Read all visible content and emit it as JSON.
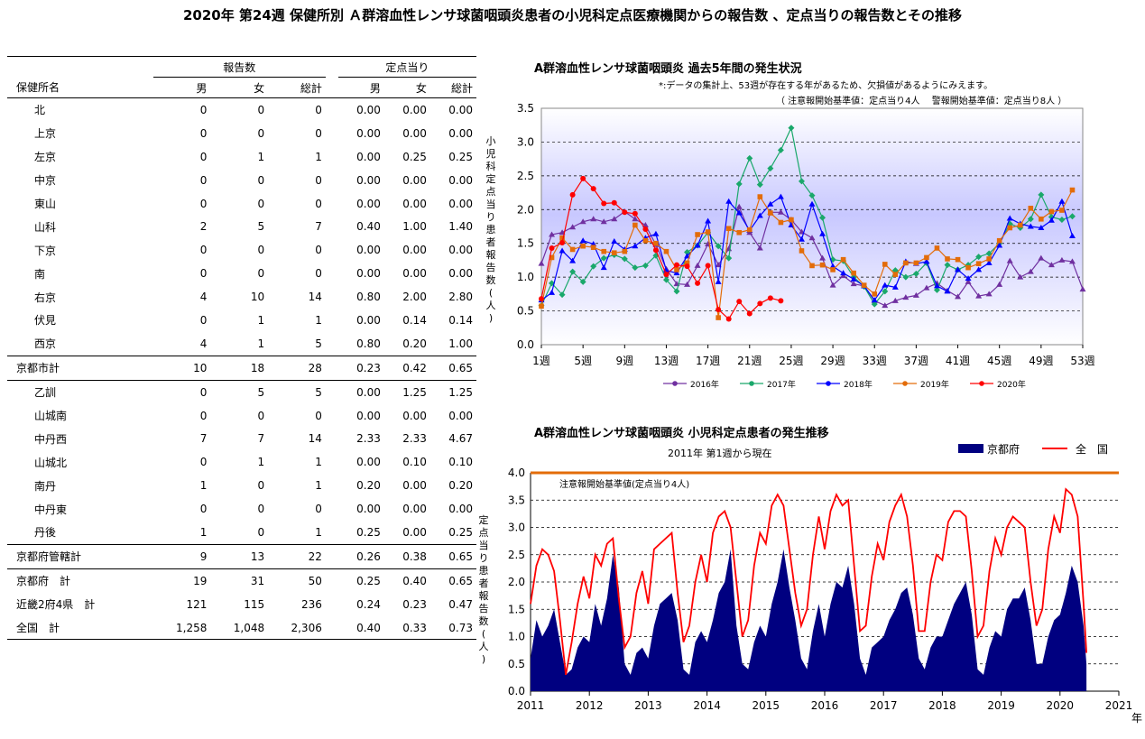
{
  "title": "2020年 第24週 保健所別 Ａ群溶血性レンサ球菌咽頭炎患者の小児科定点医療機関からの報告数 、定点当りの報告数とその推移",
  "table": {
    "group_headers": [
      "報告数",
      "定点当り"
    ],
    "name_header": "保健所名",
    "sub_headers": [
      "男",
      "女",
      "総計",
      "男",
      "女",
      "総計"
    ],
    "rows": [
      {
        "name": "北",
        "indent": 1,
        "values": [
          "0",
          "0",
          "0",
          "0.00",
          "0.00",
          "0.00"
        ]
      },
      {
        "name": "上京",
        "indent": 1,
        "values": [
          "0",
          "0",
          "0",
          "0.00",
          "0.00",
          "0.00"
        ]
      },
      {
        "name": "左京",
        "indent": 1,
        "values": [
          "0",
          "1",
          "1",
          "0.00",
          "0.25",
          "0.25"
        ]
      },
      {
        "name": "中京",
        "indent": 1,
        "values": [
          "0",
          "0",
          "0",
          "0.00",
          "0.00",
          "0.00"
        ]
      },
      {
        "name": "東山",
        "indent": 1,
        "values": [
          "0",
          "0",
          "0",
          "0.00",
          "0.00",
          "0.00"
        ]
      },
      {
        "name": "山科",
        "indent": 1,
        "values": [
          "2",
          "5",
          "7",
          "0.40",
          "1.00",
          "1.40"
        ]
      },
      {
        "name": "下京",
        "indent": 1,
        "values": [
          "0",
          "0",
          "0",
          "0.00",
          "0.00",
          "0.00"
        ]
      },
      {
        "name": "南",
        "indent": 1,
        "values": [
          "0",
          "0",
          "0",
          "0.00",
          "0.00",
          "0.00"
        ]
      },
      {
        "name": "右京",
        "indent": 1,
        "values": [
          "4",
          "10",
          "14",
          "0.80",
          "2.00",
          "2.80"
        ]
      },
      {
        "name": "伏見",
        "indent": 1,
        "values": [
          "0",
          "1",
          "1",
          "0.00",
          "0.14",
          "0.14"
        ]
      },
      {
        "name": "西京",
        "indent": 1,
        "values": [
          "4",
          "1",
          "5",
          "0.80",
          "0.20",
          "1.00"
        ]
      },
      {
        "name": "京都市計",
        "indent": 0,
        "values": [
          "10",
          "18",
          "28",
          "0.23",
          "0.42",
          "0.65"
        ]
      },
      {
        "name": "乙訓",
        "indent": 1,
        "values": [
          "0",
          "5",
          "5",
          "0.00",
          "1.25",
          "1.25"
        ]
      },
      {
        "name": "山城南",
        "indent": 1,
        "values": [
          "0",
          "0",
          "0",
          "0.00",
          "0.00",
          "0.00"
        ]
      },
      {
        "name": "中丹西",
        "indent": 1,
        "values": [
          "7",
          "7",
          "14",
          "2.33",
          "2.33",
          "4.67"
        ]
      },
      {
        "name": "山城北",
        "indent": 1,
        "values": [
          "0",
          "1",
          "1",
          "0.00",
          "0.10",
          "0.10"
        ]
      },
      {
        "name": "南丹",
        "indent": 1,
        "values": [
          "1",
          "0",
          "1",
          "0.20",
          "0.00",
          "0.20"
        ]
      },
      {
        "name": "中丹東",
        "indent": 1,
        "values": [
          "0",
          "0",
          "0",
          "0.00",
          "0.00",
          "0.00"
        ]
      },
      {
        "name": "丹後",
        "indent": 1,
        "values": [
          "1",
          "0",
          "1",
          "0.25",
          "0.00",
          "0.25"
        ]
      },
      {
        "name": "京都府管轄計",
        "indent": 0,
        "values": [
          "9",
          "13",
          "22",
          "0.26",
          "0.38",
          "0.65"
        ]
      },
      {
        "name": "京都府　計",
        "indent": 0,
        "values": [
          "19",
          "31",
          "50",
          "0.25",
          "0.40",
          "0.65"
        ]
      },
      {
        "name": "近畿2府4県　計",
        "indent": 0,
        "values": [
          "121",
          "115",
          "236",
          "0.24",
          "0.23",
          "0.47"
        ]
      },
      {
        "name": "全国　計",
        "indent": 0,
        "values": [
          "1,258",
          "1,048",
          "2,306",
          "0.40",
          "0.33",
          "0.73"
        ]
      }
    ]
  },
  "chart_data": [
    {
      "type": "line",
      "title": "A群溶血性レンサ球菌咽頭炎 過去5年間の発生状況",
      "note1": "*:データの集計上、53週が存在する年があるため、欠損値があるようにみえます。",
      "note2": "（ 注意報開始基準値：定点当り4人　 警報開始基準値：定点当り8人 ）",
      "ylabel": "小児科定点当り患者報告数(人)",
      "ylim": [
        0,
        3.5
      ],
      "yticks": [
        "0.0",
        "0.5",
        "1.0",
        "1.5",
        "2.0",
        "2.5",
        "3.0",
        "3.5"
      ],
      "xlim": [
        1,
        53
      ],
      "xticks": [
        "1週",
        "5週",
        "9週",
        "13週",
        "17週",
        "21週",
        "25週",
        "29週",
        "33週",
        "37週",
        "41週",
        "45週",
        "49週",
        "53週"
      ],
      "colors": {
        "2016年": "#7030a0",
        "2017年": "#1aa86b",
        "2018年": "#0000ff",
        "2019年": "#e36c09",
        "2020年": "#ff0000"
      },
      "series": [
        {
          "name": "2016年",
          "values": [
            1.2,
            1.63,
            1.66,
            1.74,
            1.82,
            1.86,
            1.82,
            1.86,
            1.97,
            1.86,
            1.77,
            1.48,
            1.12,
            0.9,
            0.89,
            1.17,
            1.49,
            1.18,
            1.42,
            2.04,
            1.66,
            1.43,
            1.96,
            1.96,
            1.85,
            1.67,
            1.58,
            1.28,
            0.88,
            1.02,
            0.9,
            0.87,
            0.65,
            0.58,
            0.65,
            0.7,
            0.73,
            0.84,
            0.91,
            0.8,
            0.71,
            0.93,
            0.72,
            0.75,
            0.89,
            1.24,
            1.0,
            1.08,
            1.28,
            1.18,
            1.25,
            1.23,
            0.82
          ]
        },
        {
          "name": "2017年",
          "values": [
            0.58,
            0.91,
            0.74,
            1.08,
            0.93,
            1.16,
            1.28,
            1.33,
            1.27,
            1.14,
            1.17,
            1.32,
            0.96,
            0.79,
            1.37,
            1.47,
            1.66,
            1.46,
            1.28,
            2.38,
            2.76,
            2.37,
            2.61,
            2.88,
            3.21,
            2.42,
            2.21,
            1.88,
            1.26,
            1.24,
            1.0,
            0.86,
            0.6,
            0.79,
            1.1,
            1.0,
            1.05,
            1.21,
            0.81,
            1.18,
            1.11,
            1.18,
            1.3,
            1.35,
            1.5,
            1.79,
            1.73,
            1.86,
            2.22,
            1.89,
            1.85,
            1.9
          ]
        },
        {
          "name": "2018年",
          "values": [
            0.66,
            0.77,
            1.39,
            1.24,
            1.54,
            1.49,
            1.14,
            1.53,
            1.41,
            1.46,
            1.58,
            1.64,
            1.1,
            1.06,
            1.31,
            1.47,
            1.83,
            0.93,
            2.12,
            1.95,
            1.69,
            1.91,
            2.08,
            2.19,
            1.77,
            1.56,
            2.08,
            1.64,
            1.16,
            1.06,
            0.97,
            0.87,
            0.66,
            0.88,
            0.85,
            1.23,
            1.2,
            1.23,
            0.87,
            0.79,
            1.11,
            0.98,
            1.11,
            1.21,
            1.47,
            1.87,
            1.79,
            1.75,
            1.73,
            1.84,
            2.12,
            1.61
          ]
        },
        {
          "name": "2019年",
          "values": [
            0.57,
            1.29,
            1.58,
            1.41,
            1.46,
            1.44,
            1.38,
            1.36,
            1.38,
            1.77,
            1.54,
            1.5,
            1.38,
            1.11,
            1.21,
            1.63,
            1.67,
            0.4,
            1.72,
            1.66,
            1.7,
            2.19,
            1.95,
            1.81,
            1.85,
            1.39,
            1.17,
            1.18,
            1.11,
            1.26,
            1.06,
            0.88,
            0.75,
            1.19,
            1.04,
            1.21,
            1.21,
            1.29,
            1.43,
            1.27,
            1.26,
            1.14,
            1.2,
            1.27,
            1.54,
            1.73,
            1.77,
            2.02,
            1.86,
            1.97,
            1.99,
            2.29
          ]
        },
        {
          "name": "2020年",
          "values": [
            0.68,
            1.43,
            1.51,
            2.22,
            2.46,
            2.31,
            2.09,
            2.1,
            1.96,
            1.94,
            1.71,
            1.4,
            1.04,
            1.18,
            1.16,
            0.91,
            1.17,
            0.52,
            0.38,
            0.64,
            0.46,
            0.61,
            0.69,
            0.65,
            null,
            null,
            null,
            null,
            null,
            null,
            null,
            null,
            null,
            null,
            null,
            null,
            null,
            null,
            null,
            null,
            null,
            null,
            null,
            null,
            null,
            null,
            null,
            null,
            null,
            null,
            null,
            null,
            null
          ]
        }
      ]
    },
    {
      "type": "area",
      "title": "A群溶血性レンサ球菌咽頭炎 小児科定点患者の発生推移",
      "subtitle": "2011年 第1週から現在",
      "ylabel": "定点当り患者報告数(人)",
      "threshold_label": "注意報開始基準値(定点当り4人)",
      "threshold_value": 4.0,
      "ylim": [
        0,
        4.0
      ],
      "yticks": [
        "0.0",
        "0.5",
        "1.0",
        "1.5",
        "2.0",
        "2.5",
        "3.0",
        "3.5",
        "4.0"
      ],
      "xticks": [
        "2011",
        "2012",
        "2013",
        "2014",
        "2015",
        "2016",
        "2017",
        "2018",
        "2019",
        "2020",
        "2021"
      ],
      "xunit": "年",
      "colors": {
        "京都府": "#000080",
        "全　国": "#ff0000",
        "threshold": "#e36c09"
      },
      "series": [
        {
          "name": "京都府",
          "x": [
            2011.0,
            2011.1,
            2011.2,
            2011.3,
            2011.4,
            2011.5,
            2011.6,
            2011.7,
            2011.8,
            2011.9,
            2012.0,
            2012.1,
            2012.2,
            2012.3,
            2012.4,
            2012.5,
            2012.6,
            2012.7,
            2012.8,
            2012.9,
            2013.0,
            2013.1,
            2013.2,
            2013.3,
            2013.4,
            2013.5,
            2013.6,
            2013.7,
            2013.8,
            2013.9,
            2014.0,
            2014.1,
            2014.2,
            2014.3,
            2014.4,
            2014.5,
            2014.6,
            2014.7,
            2014.8,
            2014.9,
            2015.0,
            2015.1,
            2015.2,
            2015.3,
            2015.4,
            2015.5,
            2015.6,
            2015.7,
            2015.8,
            2015.9,
            2016.0,
            2016.1,
            2016.2,
            2016.3,
            2016.4,
            2016.5,
            2016.6,
            2016.7,
            2016.8,
            2016.9,
            2017.0,
            2017.1,
            2017.2,
            2017.3,
            2017.4,
            2017.5,
            2017.6,
            2017.7,
            2017.8,
            2017.9,
            2018.0,
            2018.1,
            2018.2,
            2018.3,
            2018.4,
            2018.5,
            2018.6,
            2018.7,
            2018.8,
            2018.9,
            2019.0,
            2019.1,
            2019.2,
            2019.3,
            2019.4,
            2019.5,
            2019.6,
            2019.7,
            2019.8,
            2019.9,
            2020.0,
            2020.1,
            2020.2,
            2020.3,
            2020.4,
            2020.45
          ],
          "values": [
            0.6,
            1.3,
            1.0,
            1.2,
            1.5,
            0.9,
            0.3,
            0.4,
            0.8,
            1.0,
            0.9,
            1.6,
            1.2,
            1.7,
            2.5,
            1.9,
            0.5,
            0.3,
            0.7,
            0.8,
            0.6,
            1.2,
            1.6,
            1.7,
            1.8,
            1.3,
            0.4,
            0.3,
            0.9,
            1.1,
            0.9,
            1.3,
            1.8,
            2.0,
            2.6,
            1.2,
            0.5,
            0.4,
            0.9,
            1.2,
            1.0,
            1.6,
            2.0,
            2.6,
            1.9,
            1.3,
            0.6,
            0.4,
            1.1,
            1.6,
            1.0,
            1.6,
            2.0,
            1.9,
            2.3,
            1.6,
            0.6,
            0.3,
            0.8,
            0.9,
            1.0,
            1.3,
            1.5,
            1.8,
            1.9,
            1.4,
            0.6,
            0.4,
            0.8,
            1.0,
            1.0,
            1.3,
            1.6,
            1.8,
            2.0,
            1.4,
            0.4,
            0.3,
            0.8,
            1.1,
            1.0,
            1.5,
            1.7,
            1.7,
            1.9,
            1.3,
            0.5,
            0.5,
            1.0,
            1.3,
            1.4,
            1.8,
            2.3,
            2.0,
            1.2,
            0.5
          ]
        },
        {
          "name": "全　国",
          "x": [
            2011.0,
            2011.1,
            2011.2,
            2011.3,
            2011.4,
            2011.5,
            2011.6,
            2011.7,
            2011.8,
            2011.9,
            2012.0,
            2012.1,
            2012.2,
            2012.3,
            2012.4,
            2012.5,
            2012.6,
            2012.7,
            2012.8,
            2012.9,
            2013.0,
            2013.1,
            2013.2,
            2013.3,
            2013.4,
            2013.5,
            2013.6,
            2013.7,
            2013.8,
            2013.9,
            2014.0,
            2014.1,
            2014.2,
            2014.3,
            2014.4,
            2014.5,
            2014.6,
            2014.7,
            2014.8,
            2014.9,
            2015.0,
            2015.1,
            2015.2,
            2015.3,
            2015.4,
            2015.5,
            2015.6,
            2015.7,
            2015.8,
            2015.9,
            2016.0,
            2016.1,
            2016.2,
            2016.3,
            2016.4,
            2016.5,
            2016.6,
            2016.7,
            2016.8,
            2016.9,
            2017.0,
            2017.1,
            2017.2,
            2017.3,
            2017.4,
            2017.5,
            2017.6,
            2017.7,
            2017.8,
            2017.9,
            2018.0,
            2018.1,
            2018.2,
            2018.3,
            2018.4,
            2018.5,
            2018.6,
            2018.7,
            2018.8,
            2018.9,
            2019.0,
            2019.1,
            2019.2,
            2019.3,
            2019.4,
            2019.5,
            2019.6,
            2019.7,
            2019.8,
            2019.9,
            2020.0,
            2020.1,
            2020.2,
            2020.3,
            2020.4,
            2020.45
          ],
          "values": [
            1.6,
            2.3,
            2.6,
            2.5,
            2.2,
            1.3,
            0.3,
            0.9,
            1.6,
            2.1,
            1.7,
            2.5,
            2.3,
            2.7,
            2.8,
            1.7,
            0.8,
            1.0,
            1.8,
            2.2,
            1.6,
            2.6,
            2.7,
            2.8,
            2.9,
            1.8,
            0.9,
            1.2,
            2.0,
            2.5,
            2.0,
            2.9,
            3.2,
            3.3,
            3.0,
            2.0,
            1.0,
            1.3,
            2.3,
            2.9,
            2.7,
            3.4,
            3.6,
            3.4,
            2.6,
            1.8,
            1.2,
            1.5,
            2.5,
            3.2,
            2.6,
            3.3,
            3.6,
            3.4,
            3.5,
            2.3,
            1.1,
            1.2,
            2.1,
            2.7,
            2.4,
            3.1,
            3.4,
            3.6,
            3.2,
            2.3,
            1.1,
            1.1,
            2.0,
            2.5,
            2.4,
            3.1,
            3.3,
            3.3,
            3.2,
            2.2,
            1.0,
            1.2,
            2.2,
            2.8,
            2.5,
            3.0,
            3.2,
            3.1,
            3.0,
            2.0,
            1.2,
            1.5,
            2.6,
            3.2,
            2.9,
            3.7,
            3.6,
            3.2,
            1.6,
            0.7
          ]
        }
      ]
    }
  ]
}
